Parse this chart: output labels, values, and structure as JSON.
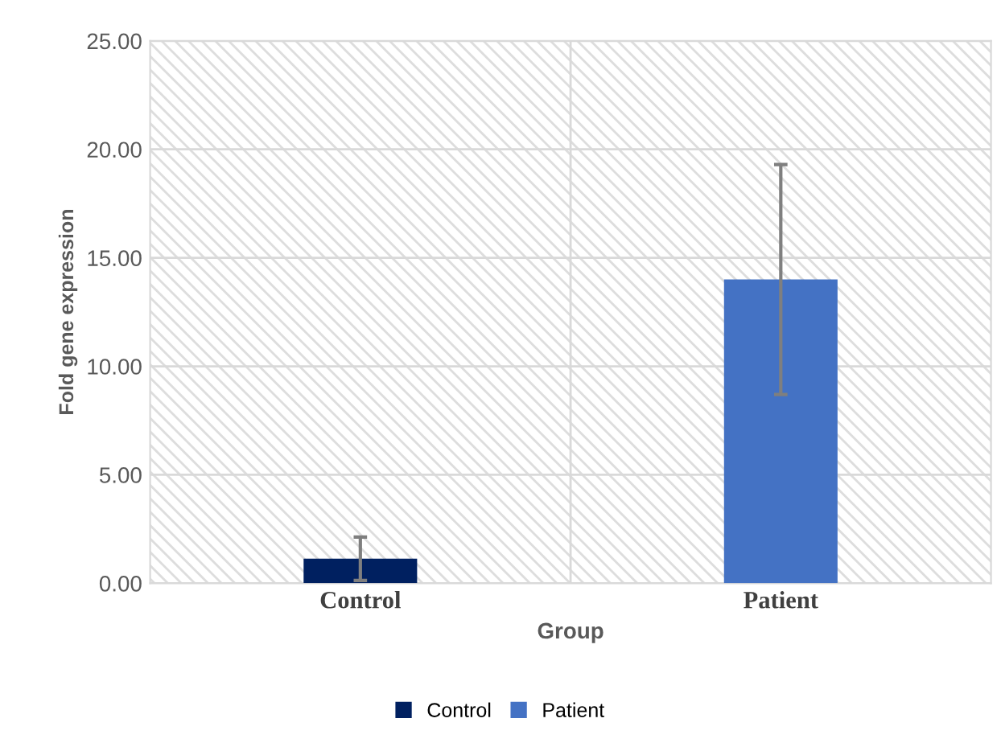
{
  "chart_data": {
    "type": "bar",
    "xlabel": "Group",
    "ylabel": "Fold gene expression",
    "categories": [
      "Control",
      "Patient"
    ],
    "series": [
      {
        "name": "Control",
        "color": "#002060",
        "values": [
          1.13,
          null
        ],
        "errors": [
          1.0,
          null
        ]
      },
      {
        "name": "Patient",
        "color": "#4472c4",
        "values": [
          null,
          14.0
        ],
        "errors": [
          null,
          5.3
        ]
      }
    ],
    "ylim": [
      0,
      25
    ],
    "yticks": [
      {
        "value": 0,
        "label": "0.00"
      },
      {
        "value": 5,
        "label": "5.00"
      },
      {
        "value": 10,
        "label": "10.00"
      },
      {
        "value": 15,
        "label": "15.00"
      },
      {
        "value": 20,
        "label": "20.00"
      },
      {
        "value": 25,
        "label": "25.00"
      }
    ],
    "grid": true,
    "legend": "bottom"
  }
}
